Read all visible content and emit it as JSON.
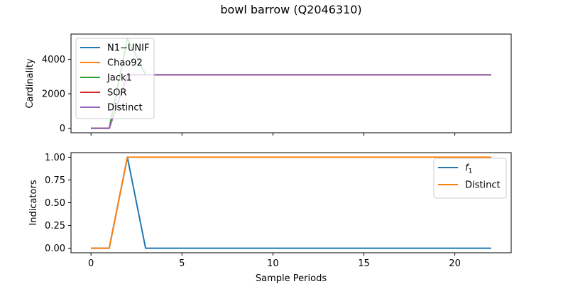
{
  "figure": {
    "title": "bowl barrow (Q2046310)"
  },
  "chart_data": [
    {
      "type": "line",
      "title": "bowl barrow (Q2046310)",
      "xlabel": "",
      "ylabel": "Cardinality",
      "xlim": [
        -1.1,
        23.1
      ],
      "ylim": [
        -260,
        5460
      ],
      "xticks": [
        0,
        5,
        10,
        15,
        20
      ],
      "yticks": [
        0,
        2000,
        4000
      ],
      "ytick_labels": [
        "0",
        "2000",
        "4000"
      ],
      "show_xtick_labels": false,
      "grid": false,
      "legend_position": "top-left",
      "x": [
        0,
        1,
        2,
        3,
        4,
        5,
        6,
        7,
        8,
        9,
        10,
        11,
        12,
        13,
        14,
        15,
        16,
        17,
        18,
        19,
        20,
        21,
        22
      ],
      "series": [
        {
          "name": "N1−UNIF",
          "color": "#1f77b4",
          "values": [
            0,
            0,
            3100,
            3100,
            3100,
            3100,
            3100,
            3100,
            3100,
            3100,
            3100,
            3100,
            3100,
            3100,
            3100,
            3100,
            3100,
            3100,
            3100,
            3100,
            3100,
            3100,
            3100
          ]
        },
        {
          "name": "Chao92",
          "color": "#ff7f0e",
          "values": [
            0,
            0,
            3100,
            3100,
            3100,
            3100,
            3100,
            3100,
            3100,
            3100,
            3100,
            3100,
            3100,
            3100,
            3100,
            3100,
            3100,
            3100,
            3100,
            3100,
            3100,
            3100,
            3100
          ]
        },
        {
          "name": "Jack1",
          "color": "#2ca02c",
          "values": [
            0,
            0,
            5200,
            3100,
            3100,
            3100,
            3100,
            3100,
            3100,
            3100,
            3100,
            3100,
            3100,
            3100,
            3100,
            3100,
            3100,
            3100,
            3100,
            3100,
            3100,
            3100,
            3100
          ]
        },
        {
          "name": "SOR",
          "color": "#d62728",
          "values": [
            0,
            0,
            3100,
            3100,
            3100,
            3100,
            3100,
            3100,
            3100,
            3100,
            3100,
            3100,
            3100,
            3100,
            3100,
            3100,
            3100,
            3100,
            3100,
            3100,
            3100,
            3100,
            3100
          ]
        },
        {
          "name": "Distinct",
          "color": "#9467bd",
          "values": [
            0,
            0,
            3100,
            3100,
            3100,
            3100,
            3100,
            3100,
            3100,
            3100,
            3100,
            3100,
            3100,
            3100,
            3100,
            3100,
            3100,
            3100,
            3100,
            3100,
            3100,
            3100,
            3100
          ]
        }
      ]
    },
    {
      "type": "line",
      "xlabel": "Sample Periods",
      "ylabel": "Indicators",
      "xlim": [
        -1.1,
        23.1
      ],
      "ylim": [
        -0.05,
        1.05
      ],
      "xticks": [
        0,
        5,
        10,
        15,
        20
      ],
      "xtick_labels": [
        "0",
        "5",
        "10",
        "15",
        "20"
      ],
      "yticks": [
        0,
        0.25,
        0.5,
        0.75,
        1.0
      ],
      "ytick_labels": [
        "0.00",
        "0.25",
        "0.50",
        "0.75",
        "1.00"
      ],
      "show_xtick_labels": true,
      "grid": false,
      "legend_position": "top-right",
      "x": [
        0,
        1,
        2,
        3,
        4,
        5,
        6,
        7,
        8,
        9,
        10,
        11,
        12,
        13,
        14,
        15,
        16,
        17,
        18,
        19,
        20,
        21,
        22
      ],
      "series": [
        {
          "name": "f",
          "subscript": "1",
          "color": "#1f77b4",
          "values": [
            0,
            0,
            1,
            0,
            0,
            0,
            0,
            0,
            0,
            0,
            0,
            0,
            0,
            0,
            0,
            0,
            0,
            0,
            0,
            0,
            0,
            0,
            0
          ]
        },
        {
          "name": "Distinct",
          "color": "#ff7f0e",
          "values": [
            0,
            0,
            1,
            1,
            1,
            1,
            1,
            1,
            1,
            1,
            1,
            1,
            1,
            1,
            1,
            1,
            1,
            1,
            1,
            1,
            1,
            1,
            1
          ]
        }
      ]
    }
  ]
}
